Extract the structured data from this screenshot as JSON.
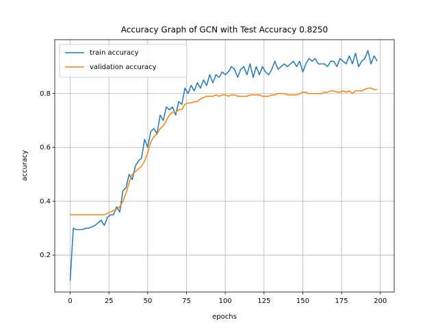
{
  "chart_data": {
    "type": "line",
    "title": "Accuracy Graph of GCN with Test Accuracy 0.8250",
    "x_label": "epochs",
    "y_label": "accuracy",
    "x": [
      0,
      2,
      4,
      6,
      8,
      10,
      12,
      14,
      16,
      18,
      20,
      22,
      24,
      26,
      28,
      30,
      32,
      34,
      36,
      38,
      40,
      42,
      44,
      46,
      48,
      50,
      52,
      54,
      56,
      58,
      60,
      62,
      64,
      66,
      68,
      70,
      72,
      74,
      76,
      78,
      80,
      82,
      84,
      86,
      88,
      90,
      92,
      94,
      96,
      98,
      100,
      102,
      104,
      106,
      108,
      110,
      112,
      114,
      116,
      118,
      120,
      122,
      124,
      126,
      128,
      130,
      132,
      134,
      136,
      138,
      140,
      142,
      144,
      146,
      148,
      150,
      152,
      154,
      156,
      158,
      160,
      162,
      164,
      166,
      168,
      170,
      172,
      174,
      176,
      178,
      180,
      182,
      184,
      186,
      188,
      190,
      192,
      194,
      196,
      198
    ],
    "series": [
      {
        "name": "train accuracy",
        "color": "#1f77b4",
        "values": [
          0.105,
          0.3,
          0.295,
          0.295,
          0.295,
          0.3,
          0.3,
          0.305,
          0.31,
          0.32,
          0.33,
          0.31,
          0.34,
          0.35,
          0.35,
          0.38,
          0.36,
          0.44,
          0.45,
          0.5,
          0.48,
          0.53,
          0.55,
          0.56,
          0.63,
          0.6,
          0.66,
          0.67,
          0.65,
          0.72,
          0.7,
          0.75,
          0.74,
          0.75,
          0.72,
          0.77,
          0.76,
          0.82,
          0.8,
          0.83,
          0.81,
          0.84,
          0.82,
          0.85,
          0.83,
          0.87,
          0.84,
          0.87,
          0.86,
          0.88,
          0.87,
          0.88,
          0.9,
          0.89,
          0.86,
          0.89,
          0.9,
          0.87,
          0.91,
          0.86,
          0.9,
          0.87,
          0.9,
          0.88,
          0.87,
          0.89,
          0.92,
          0.89,
          0.9,
          0.91,
          0.9,
          0.91,
          0.92,
          0.9,
          0.92,
          0.88,
          0.91,
          0.93,
          0.92,
          0.93,
          0.91,
          0.91,
          0.91,
          0.9,
          0.92,
          0.92,
          0.9,
          0.93,
          0.92,
          0.91,
          0.94,
          0.91,
          0.95,
          0.9,
          0.92,
          0.93,
          0.96,
          0.91,
          0.94,
          0.92
        ]
      },
      {
        "name": "validation accuracy",
        "color": "#ff7f0e",
        "values": [
          0.35,
          0.35,
          0.35,
          0.35,
          0.35,
          0.35,
          0.35,
          0.35,
          0.35,
          0.35,
          0.35,
          0.35,
          0.355,
          0.36,
          0.365,
          0.37,
          0.38,
          0.4,
          0.43,
          0.47,
          0.5,
          0.51,
          0.52,
          0.53,
          0.55,
          0.58,
          0.62,
          0.64,
          0.65,
          0.67,
          0.68,
          0.7,
          0.72,
          0.73,
          0.73,
          0.74,
          0.74,
          0.76,
          0.765,
          0.765,
          0.77,
          0.77,
          0.78,
          0.785,
          0.79,
          0.79,
          0.79,
          0.795,
          0.79,
          0.795,
          0.795,
          0.79,
          0.795,
          0.795,
          0.79,
          0.79,
          0.79,
          0.79,
          0.795,
          0.795,
          0.795,
          0.795,
          0.79,
          0.79,
          0.79,
          0.795,
          0.795,
          0.8,
          0.8,
          0.8,
          0.795,
          0.795,
          0.795,
          0.795,
          0.8,
          0.805,
          0.805,
          0.8,
          0.8,
          0.8,
          0.8,
          0.8,
          0.805,
          0.805,
          0.81,
          0.81,
          0.805,
          0.805,
          0.81,
          0.805,
          0.81,
          0.8,
          0.81,
          0.81,
          0.81,
          0.815,
          0.82,
          0.82,
          0.815,
          0.815
        ]
      }
    ],
    "xlim": [
      -9.95,
      208.95
    ],
    "ylim": [
      0.063,
      1.0
    ],
    "xticks": [
      0,
      25,
      50,
      75,
      100,
      125,
      150,
      175,
      200
    ],
    "yticks": [
      0.2,
      0.4,
      0.6,
      0.8
    ],
    "grid": true,
    "legend": "upper left"
  }
}
